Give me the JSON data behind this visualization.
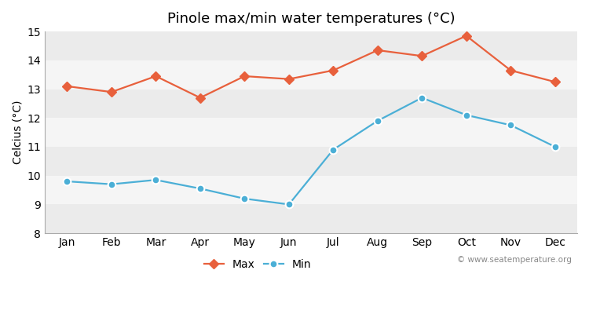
{
  "title": "Pinole max/min water temperatures (°C)",
  "ylabel": "Celcius (°C)",
  "months": [
    "Jan",
    "Feb",
    "Mar",
    "Apr",
    "May",
    "Jun",
    "Jul",
    "Aug",
    "Sep",
    "Oct",
    "Nov",
    "Dec"
  ],
  "max_values": [
    13.1,
    12.9,
    13.45,
    12.7,
    13.45,
    13.35,
    13.65,
    14.35,
    14.15,
    14.85,
    13.65,
    13.25
  ],
  "min_values": [
    9.8,
    9.7,
    9.85,
    9.55,
    9.2,
    9.0,
    10.9,
    11.9,
    12.7,
    12.1,
    11.75,
    11.0
  ],
  "max_color": "#e8603c",
  "min_color": "#4bafd6",
  "figure_bg": "#ffffff",
  "plot_bg": "#ffffff",
  "band_color_light": "#ebebeb",
  "band_color_dark": "#f5f5f5",
  "ylim": [
    8,
    15
  ],
  "yticks": [
    8,
    9,
    10,
    11,
    12,
    13,
    14,
    15
  ],
  "legend_labels": [
    "Max",
    "Min"
  ],
  "watermark": "© www.seatemperature.org",
  "marker_size_max": 6,
  "marker_size_min": 7,
  "line_width": 1.6,
  "title_fontsize": 13,
  "axis_fontsize": 10
}
